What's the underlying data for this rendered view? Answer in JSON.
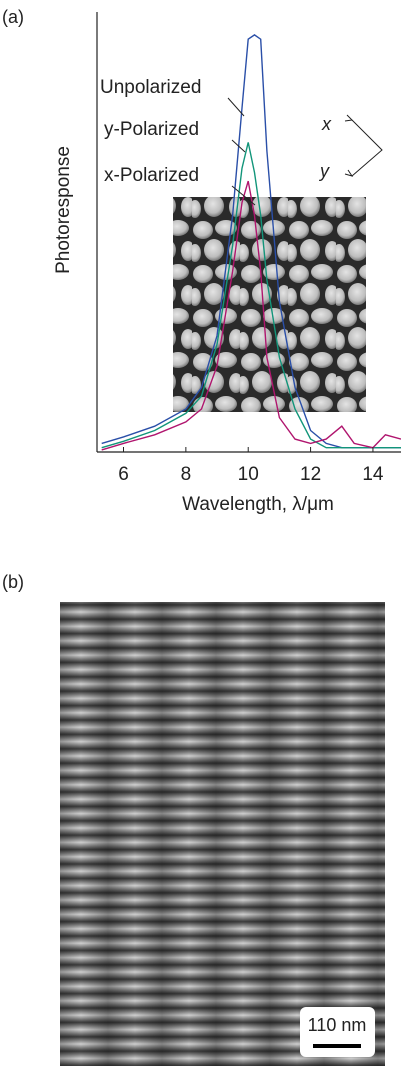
{
  "chart_data": {
    "type": "line",
    "panel_label": "(a)",
    "ylabel": "Photoresponse",
    "xlabel": "Wavelength, λ/μm",
    "x": [
      5.3,
      6,
      7,
      8,
      8.5,
      9,
      9.5,
      9.8,
      10,
      10.2,
      10.4,
      10.6,
      11,
      11.5,
      12,
      12.5,
      13,
      13.4,
      14,
      14.4,
      14.9
    ],
    "series": [
      {
        "name": "Unpolarized",
        "color": "#2a4fa8",
        "values": [
          0.02,
          0.035,
          0.06,
          0.1,
          0.15,
          0.27,
          0.55,
          0.8,
          0.96,
          0.97,
          0.96,
          0.7,
          0.35,
          0.15,
          0.05,
          0.02,
          0.01,
          0.01,
          0.01,
          0.01,
          0.01
        ]
      },
      {
        "name": "y-Polarized",
        "color": "#12957a",
        "values": [
          0.01,
          0.025,
          0.05,
          0.09,
          0.13,
          0.25,
          0.48,
          0.66,
          0.72,
          0.65,
          0.55,
          0.4,
          0.22,
          0.1,
          0.03,
          0.01,
          0.01,
          0.01,
          0.01,
          0.01,
          0.01
        ]
      },
      {
        "name": "x-Polarized",
        "color": "#b0156e",
        "values": [
          0.005,
          0.02,
          0.04,
          0.07,
          0.1,
          0.2,
          0.42,
          0.58,
          0.63,
          0.55,
          0.42,
          0.22,
          0.08,
          0.03,
          0.02,
          0.03,
          0.06,
          0.02,
          0.01,
          0.04,
          0.03
        ]
      }
    ],
    "xlim": [
      5.15,
      14.9
    ],
    "xticks": [
      6,
      8,
      10,
      12,
      14
    ],
    "ylim": [
      0,
      1
    ],
    "annotations": [
      "x",
      "y"
    ]
  },
  "panel_b": {
    "label": "(b)",
    "scale_bar": "110 nm"
  }
}
